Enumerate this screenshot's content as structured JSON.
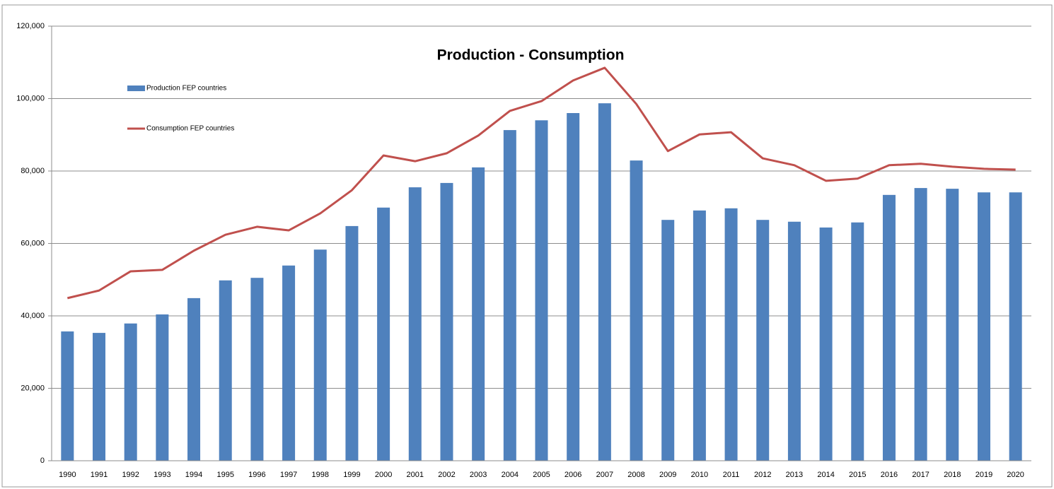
{
  "chart_data": {
    "type": "bar",
    "title": "Production - Consumption",
    "categories": [
      "1990",
      "1991",
      "1992",
      "1993",
      "1994",
      "1995",
      "1996",
      "1997",
      "1998",
      "1999",
      "2000",
      "2001",
      "2002",
      "2003",
      "2004",
      "2005",
      "2006",
      "2007",
      "2008",
      "2009",
      "2010",
      "2011",
      "2012",
      "2013",
      "2014",
      "2015",
      "2016",
      "2017",
      "2018",
      "2019",
      "2020"
    ],
    "series": [
      {
        "name": "Production FEP countries",
        "type": "bar",
        "color": "#4f81bd",
        "values": [
          35700,
          35300,
          37900,
          40400,
          44900,
          49800,
          50500,
          53900,
          58300,
          64800,
          69900,
          75500,
          76700,
          81000,
          91300,
          94000,
          96000,
          98700,
          82900,
          66500,
          69100,
          69700,
          66500,
          66000,
          64400,
          65800,
          73400,
          75300,
          75100,
          74100,
          74100
        ]
      },
      {
        "name": "Consumption FEP countries",
        "type": "line",
        "color": "#c0504d",
        "values": [
          44900,
          47000,
          52300,
          52700,
          58000,
          62400,
          64600,
          63600,
          68300,
          74700,
          84300,
          82700,
          84900,
          89800,
          96600,
          99300,
          105000,
          108500,
          98500,
          85500,
          90100,
          90700,
          83500,
          81600,
          77300,
          77900,
          81600,
          82000,
          81200,
          80600,
          80400
        ]
      }
    ],
    "ylim": [
      0,
      120000
    ],
    "yticks": [
      0,
      {
        "value": 20000,
        "label": "20,000"
      },
      {
        "value": 40000,
        "label": "40,000"
      },
      {
        "value": 60000,
        "label": "60,000"
      },
      {
        "value": 80000,
        "label": "80,000"
      },
      {
        "value": 100000,
        "label": "100,000"
      },
      {
        "value": 120000,
        "label": "120,000"
      }
    ],
    "grid": true,
    "legend": "upper left"
  }
}
